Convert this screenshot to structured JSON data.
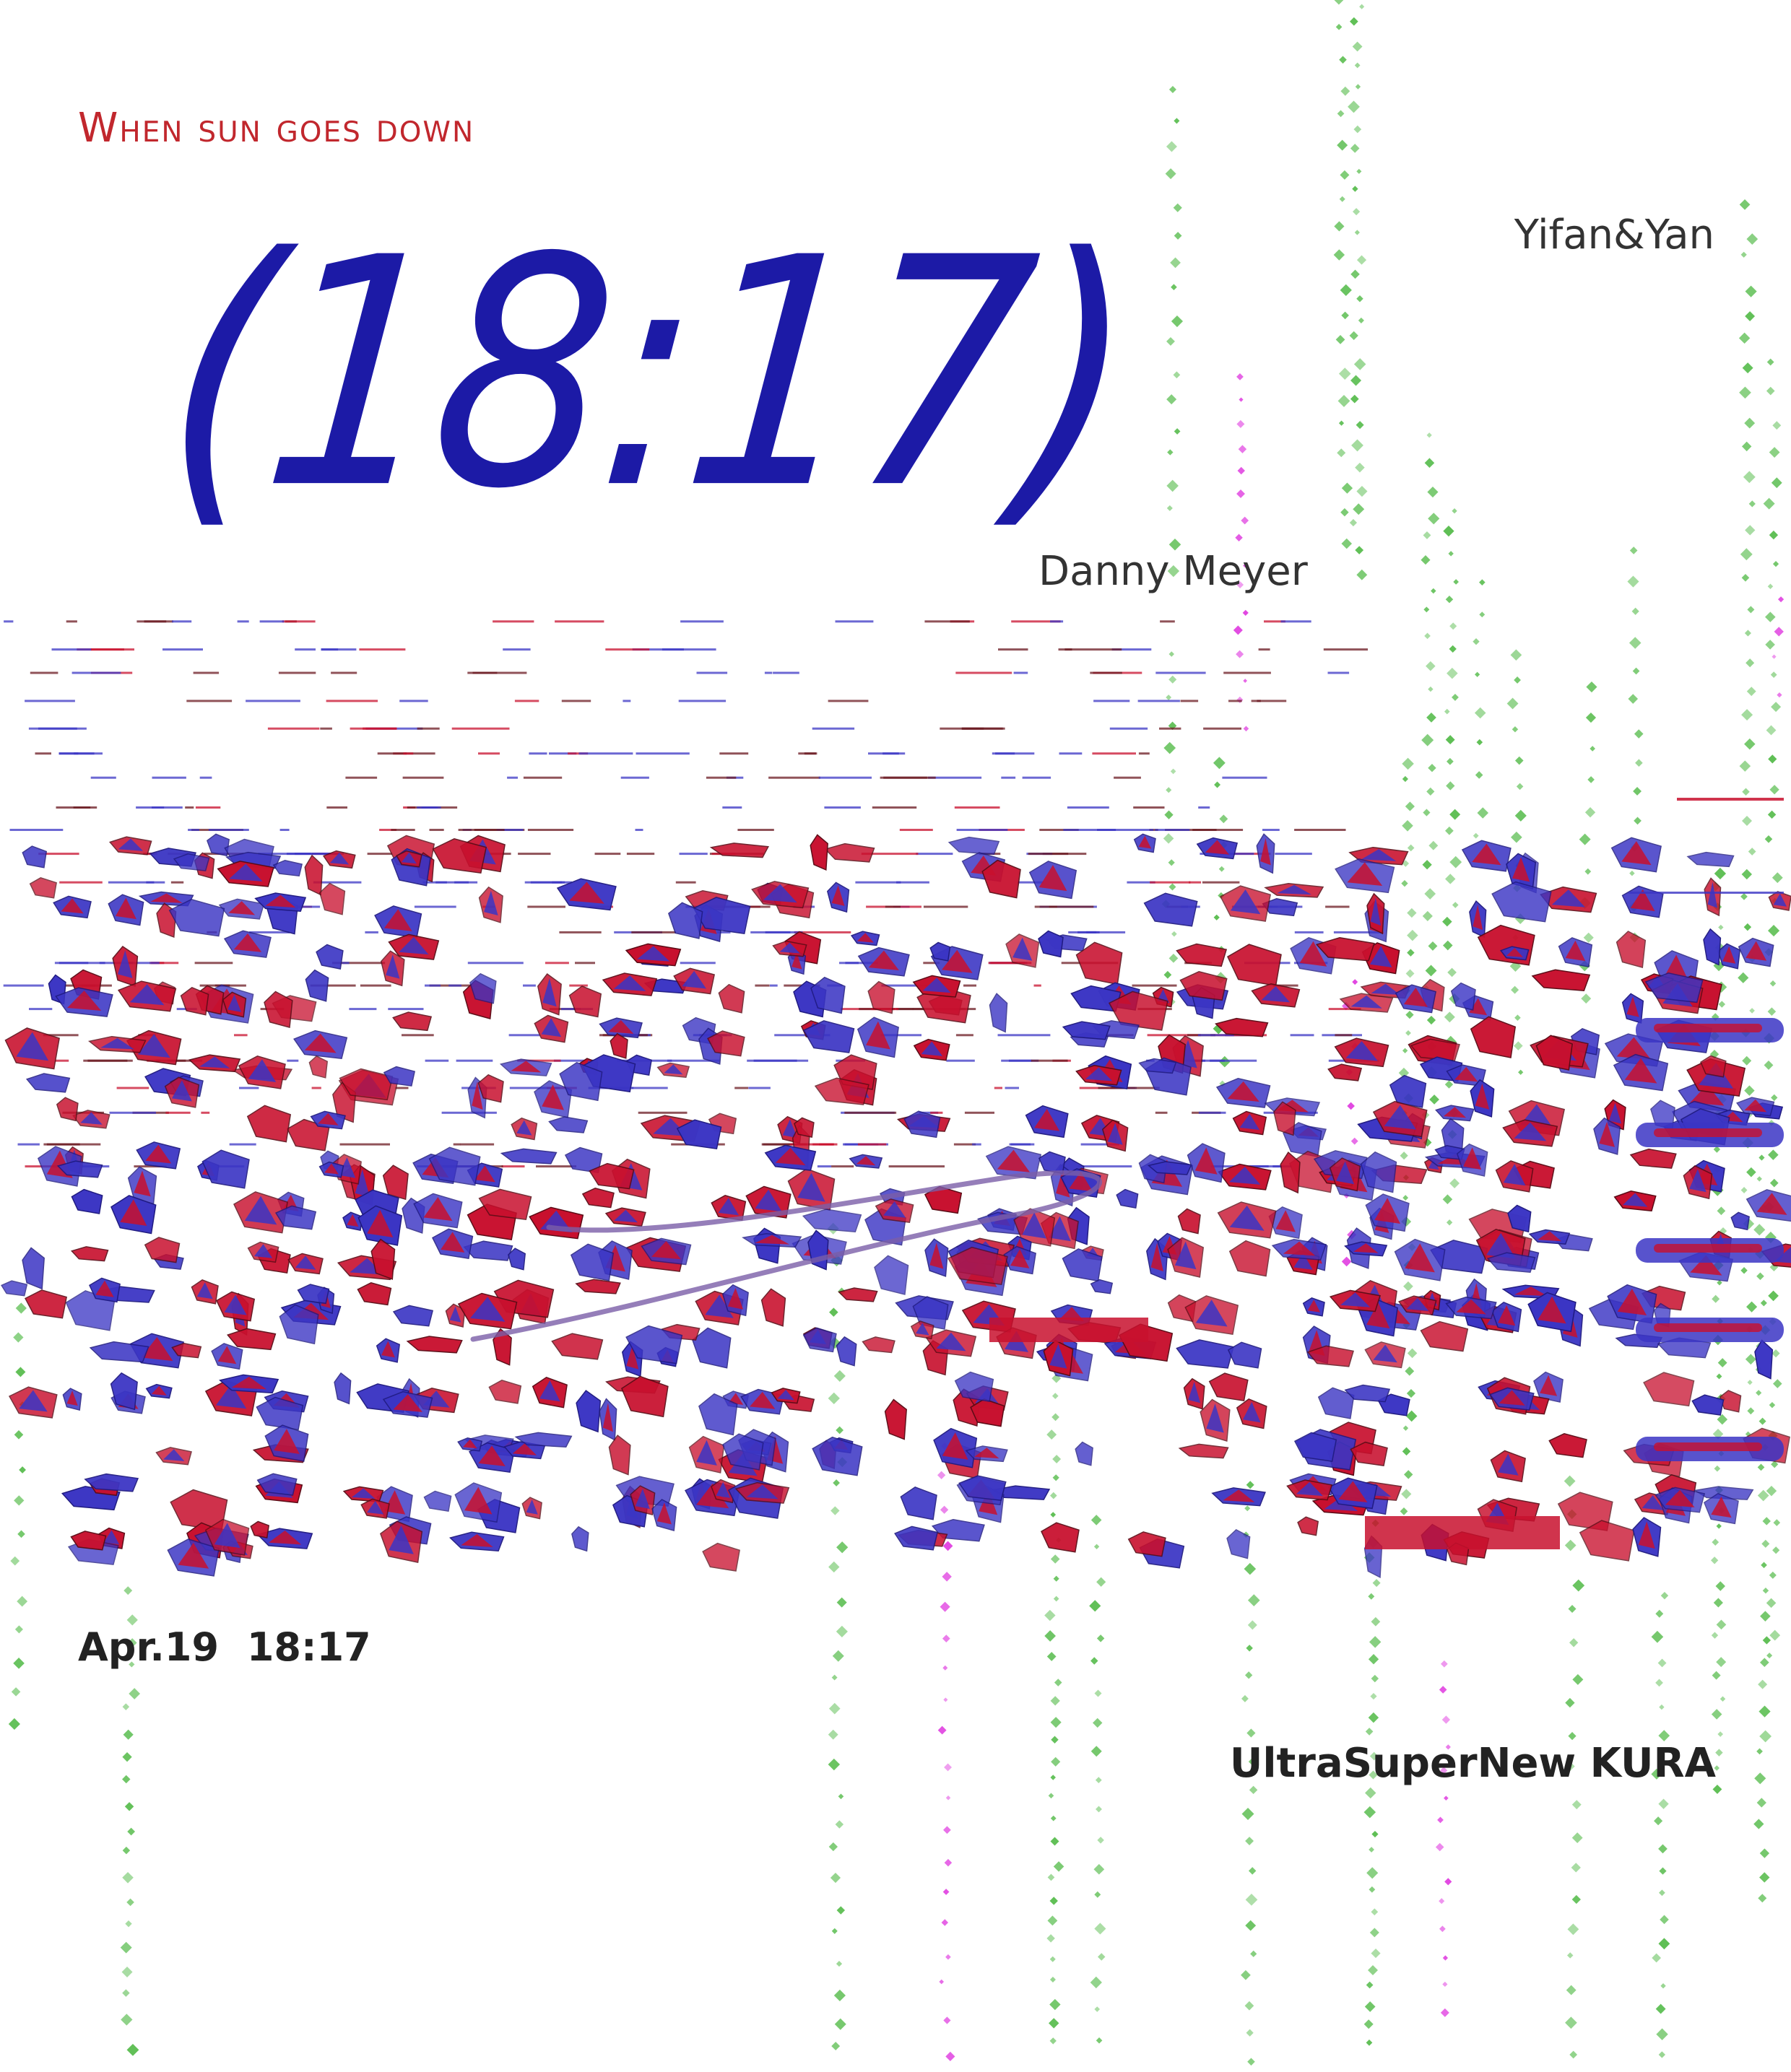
{
  "poster": {
    "title": "When sun goes down",
    "time_display": "(18:17)",
    "artists": [
      "Yifan&Yan",
      "Danny Meyer"
    ],
    "date": "Apr.19",
    "time": "18:17",
    "venue": "UltraSuperNew KURA"
  },
  "colors": {
    "title_red": "#c1272d",
    "time_blue": "#1c1aa6",
    "text_dark": "#222222",
    "shard_blue": "#3b35c4",
    "shard_red": "#c8102e",
    "dot_green": "#5fbf55",
    "dot_magenta": "#e040e0",
    "ribbon_purple": "#7a5ea8"
  }
}
